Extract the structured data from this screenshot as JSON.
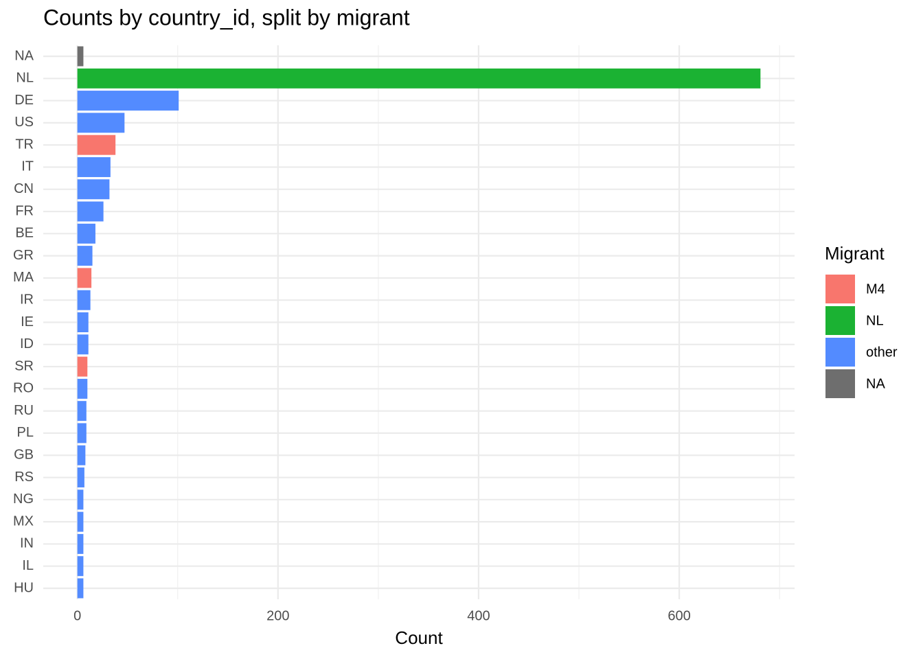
{
  "chart_data": {
    "type": "bar",
    "orientation": "horizontal",
    "title": "Counts by country_id, split by migrant",
    "x_label": "Count",
    "legend_title": "Migrant",
    "legend_position": "right",
    "categories": [
      "NA",
      "NL",
      "DE",
      "US",
      "TR",
      "IT",
      "CN",
      "FR",
      "BE",
      "GR",
      "MA",
      "IR",
      "IE",
      "ID",
      "SR",
      "RO",
      "RU",
      "PL",
      "GB",
      "RS",
      "NG",
      "MX",
      "IN",
      "IL",
      "HU"
    ],
    "series": [
      {
        "name": "M4",
        "color": "#f8766d",
        "values": [
          null,
          null,
          null,
          null,
          38,
          null,
          null,
          null,
          null,
          null,
          14,
          null,
          null,
          null,
          10,
          null,
          null,
          null,
          null,
          null,
          null,
          null,
          null,
          null,
          null
        ]
      },
      {
        "name": "NL",
        "color": "#1bb233",
        "values": [
          null,
          681,
          null,
          null,
          null,
          null,
          null,
          null,
          null,
          null,
          null,
          null,
          null,
          null,
          null,
          null,
          null,
          null,
          null,
          null,
          null,
          null,
          null,
          null,
          null
        ]
      },
      {
        "name": "other",
        "color": "#538bff",
        "values": [
          null,
          null,
          101,
          47,
          null,
          33,
          32,
          26,
          18,
          15,
          null,
          13,
          11,
          11,
          null,
          10,
          9,
          9,
          8,
          7,
          6,
          6,
          6,
          6,
          6
        ]
      },
      {
        "name": "NA",
        "color": "#6e6e6e",
        "values": [
          6,
          null,
          null,
          null,
          null,
          null,
          null,
          null,
          null,
          null,
          null,
          null,
          null,
          null,
          null,
          null,
          null,
          null,
          null,
          null,
          null,
          null,
          null,
          null,
          null
        ]
      }
    ],
    "xlim": [
      -34,
      715
    ],
    "xticks": [
      0,
      200,
      400,
      600
    ],
    "x_minor_ticks": [
      100,
      300,
      500,
      700
    ],
    "grid": true
  }
}
